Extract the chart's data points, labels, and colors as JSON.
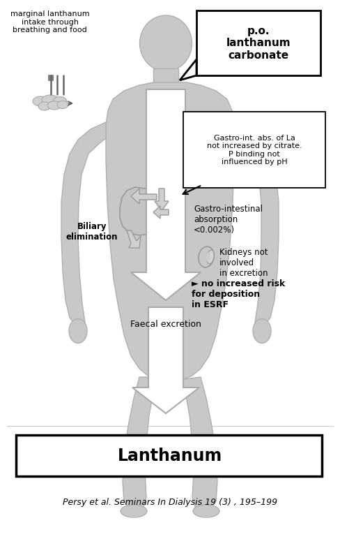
{
  "bg_color": "#ffffff",
  "body_color": "#c8c8c8",
  "body_edge": "#b0b0b0",
  "arrow_fill": "#d0d0d0",
  "arrow_edge": "#999999",
  "text_color": "#000000",
  "title_text": "Lanthanum",
  "citation_text": "Persy et al. Seminars In Dialysis 19 (3) , 195–199",
  "po_label": "p.o.\nlanthanum\ncarbonate",
  "marginal_label": "marginal lanthanum\nintake through\nbreathing and food",
  "gastro_box_text": "Gastro-int. abs. of La\nnot increased by citrate.\nP binding not\ninfluenced by pH",
  "gastro_abs_text": "Gastro-intestinal\nabsorption\n<0.002%)",
  "biliary_text": "Biliary\nelimination",
  "kidneys_text": "Kidneys not\ninvolved\nin excretion",
  "no_risk_text": "► no increased risk\nfor deposition\nin ESRF",
  "faecal_text": "Faecal excretion",
  "fig_width": 4.88,
  "fig_height": 7.92,
  "dpi": 100
}
